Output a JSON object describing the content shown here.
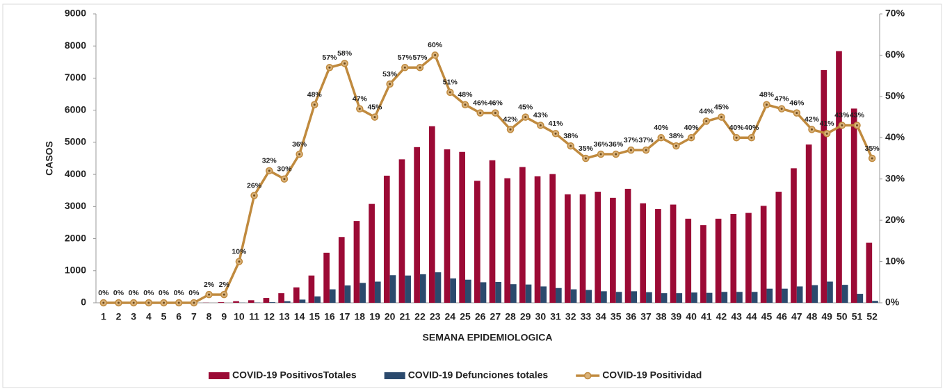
{
  "chart_data": {
    "type": "bar",
    "x_label": "SEMANA EPIDEMIOLOGICA",
    "y_label": "CASOS",
    "categories": [
      "1",
      "2",
      "3",
      "4",
      "5",
      "6",
      "7",
      "8",
      "9",
      "10",
      "11",
      "12",
      "13",
      "14",
      "15",
      "16",
      "17",
      "18",
      "19",
      "20",
      "21",
      "22",
      "23",
      "24",
      "25",
      "26",
      "27",
      "28",
      "29",
      "30",
      "31",
      "32",
      "33",
      "34",
      "35",
      "36",
      "37",
      "38",
      "39",
      "40",
      "41",
      "42",
      "43",
      "44",
      "45",
      "46",
      "47",
      "48",
      "49",
      "50",
      "51",
      "52"
    ],
    "ylim": [
      0,
      9000
    ],
    "yticks": [
      0,
      1000,
      2000,
      3000,
      4000,
      5000,
      6000,
      7000,
      8000,
      9000
    ],
    "y2lim": [
      0,
      70
    ],
    "y2ticks": [
      {
        "value": 0,
        "label": "0%"
      },
      {
        "value": 10,
        "label": "10%"
      },
      {
        "value": 20,
        "label": "20%"
      },
      {
        "value": 30,
        "label": "30%"
      },
      {
        "value": 40,
        "label": "40%"
      },
      {
        "value": 50,
        "label": "50%"
      },
      {
        "value": 60,
        "label": "60%"
      },
      {
        "value": 70,
        "label": "70%"
      }
    ],
    "series": [
      {
        "name": "COVID-19 PositivosTotales",
        "type": "bar",
        "color": "#9b0a35",
        "values": [
          0,
          0,
          0,
          0,
          0,
          0,
          0,
          5,
          20,
          50,
          80,
          150,
          300,
          480,
          850,
          1560,
          2050,
          2550,
          3080,
          3960,
          4470,
          4850,
          5500,
          4780,
          4700,
          3800,
          4440,
          3880,
          4230,
          3940,
          4010,
          3380,
          3380,
          3460,
          3270,
          3550,
          3100,
          2920,
          3060,
          2620,
          2420,
          2620,
          2770,
          2800,
          3020,
          3460,
          4190,
          4930,
          7250,
          7840,
          6050,
          1870
        ]
      },
      {
        "name": "COVID-19 Defunciones totales",
        "type": "bar",
        "color": "#2b4a6d",
        "values": [
          0,
          0,
          0,
          0,
          0,
          0,
          0,
          0,
          0,
          5,
          10,
          20,
          50,
          100,
          200,
          420,
          540,
          620,
          660,
          860,
          850,
          890,
          950,
          760,
          720,
          640,
          650,
          580,
          570,
          510,
          460,
          420,
          400,
          360,
          340,
          360,
          330,
          300,
          300,
          320,
          310,
          340,
          340,
          340,
          440,
          440,
          510,
          550,
          660,
          560,
          280,
          60
        ]
      },
      {
        "name": "COVID-19 Positividad",
        "type": "line",
        "axis": "y2",
        "color": "#c08a3e",
        "values": [
          0,
          0,
          0,
          0,
          0,
          0,
          0,
          2,
          2,
          10,
          26,
          32,
          30,
          36,
          48,
          57,
          58,
          47,
          45,
          53,
          57,
          57,
          60,
          51,
          48,
          46,
          46,
          42,
          45,
          43,
          41,
          38,
          35,
          36,
          36,
          37,
          37,
          40,
          38,
          40,
          44,
          45,
          40,
          40,
          48,
          47,
          46,
          42,
          41,
          43,
          43,
          35
        ],
        "value_labels": [
          "0%",
          "0%",
          "0%",
          "0%",
          "0%",
          "0%",
          "0%",
          "2%",
          "2%",
          "10%",
          "26%",
          "32%",
          "30%",
          "36%",
          "48%",
          "57%",
          "58%",
          "47%",
          "45%",
          "53%",
          "57%",
          "57%",
          "60%",
          "51%",
          "48%",
          "46%",
          "46%",
          "42%",
          "45%",
          "43%",
          "41%",
          "38%",
          "35%",
          "36%",
          "36%",
          "37%",
          "37%",
          "40%",
          "38%",
          "40%",
          "44%",
          "45%",
          "40%",
          "40%",
          "48%",
          "47%",
          "46%",
          "42%",
          "41%",
          "43%",
          "43%",
          "35%"
        ]
      }
    ]
  }
}
